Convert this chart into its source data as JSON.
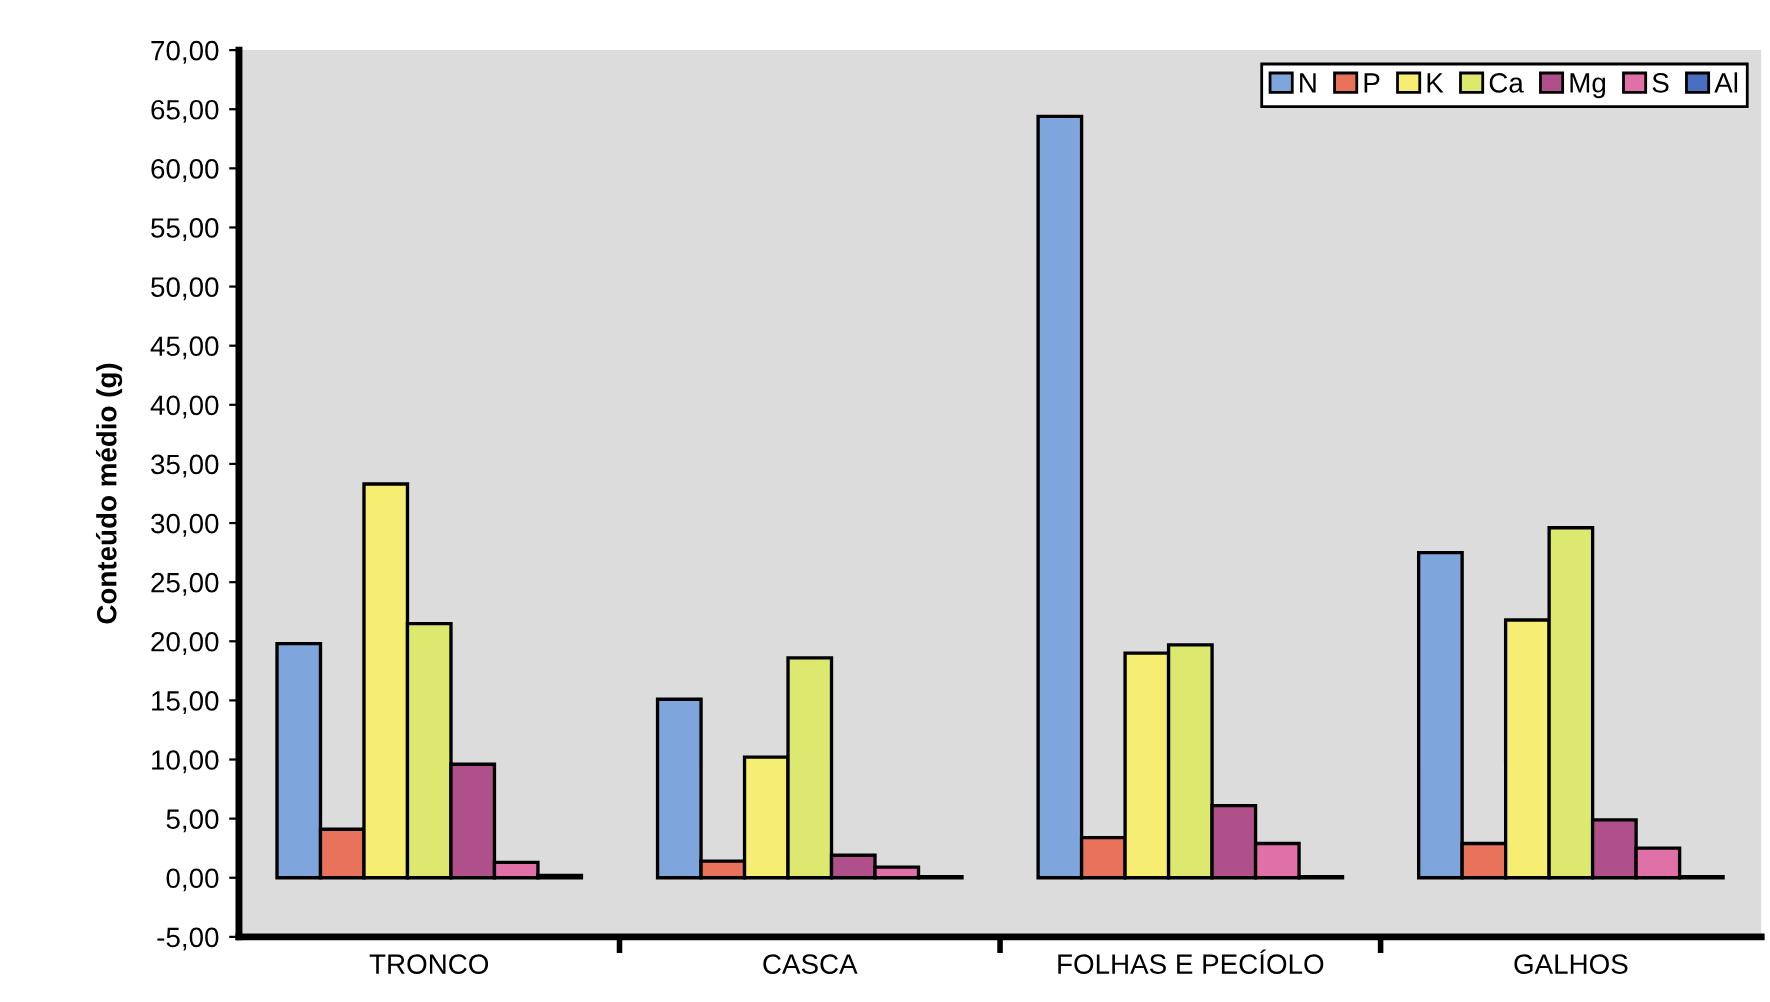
{
  "chart_data": {
    "type": "bar",
    "ylabel": "Conteúdo médio (g)",
    "categories": [
      "TRONCO",
      "CASCA",
      "FOLHAS E PECÍOLO",
      "GALHOS"
    ],
    "series": [
      {
        "name": "N",
        "color": "#7ea6dc",
        "values": [
          19.8,
          15.1,
          64.4,
          27.5
        ]
      },
      {
        "name": "P",
        "color": "#e8735a",
        "values": [
          4.1,
          1.4,
          3.4,
          2.9
        ]
      },
      {
        "name": "K",
        "color": "#f6ee72",
        "values": [
          33.3,
          10.2,
          19.0,
          21.8
        ]
      },
      {
        "name": "Ca",
        "color": "#dce96e",
        "values": [
          21.5,
          18.6,
          19.7,
          29.6
        ]
      },
      {
        "name": "Mg",
        "color": "#b0508a",
        "values": [
          9.6,
          1.9,
          6.1,
          4.9
        ]
      },
      {
        "name": "S",
        "color": "#e070a8",
        "values": [
          1.3,
          0.9,
          2.9,
          2.5
        ]
      },
      {
        "name": "Al",
        "color": "#4a6fc0",
        "values": [
          0.2,
          0.1,
          0.1,
          0.1
        ]
      }
    ],
    "ylim": [
      -5,
      70
    ],
    "yticks": [
      {
        "value": -5,
        "label": "-5,00"
      },
      {
        "value": 0,
        "label": "0,00"
      },
      {
        "value": 5,
        "label": "5,00"
      },
      {
        "value": 10,
        "label": "10,00"
      },
      {
        "value": 15,
        "label": "15,00"
      },
      {
        "value": 20,
        "label": "20,00"
      },
      {
        "value": 25,
        "label": "25,00"
      },
      {
        "value": 30,
        "label": "30,00"
      },
      {
        "value": 35,
        "label": "35,00"
      },
      {
        "value": 40,
        "label": "40,00"
      },
      {
        "value": 45,
        "label": "45,00"
      },
      {
        "value": 50,
        "label": "50,00"
      },
      {
        "value": 55,
        "label": "55,00"
      },
      {
        "value": 60,
        "label": "60,00"
      },
      {
        "value": 65,
        "label": "65,00"
      },
      {
        "value": 70,
        "label": "70,00"
      }
    ],
    "grid": false,
    "legend": "top right"
  }
}
